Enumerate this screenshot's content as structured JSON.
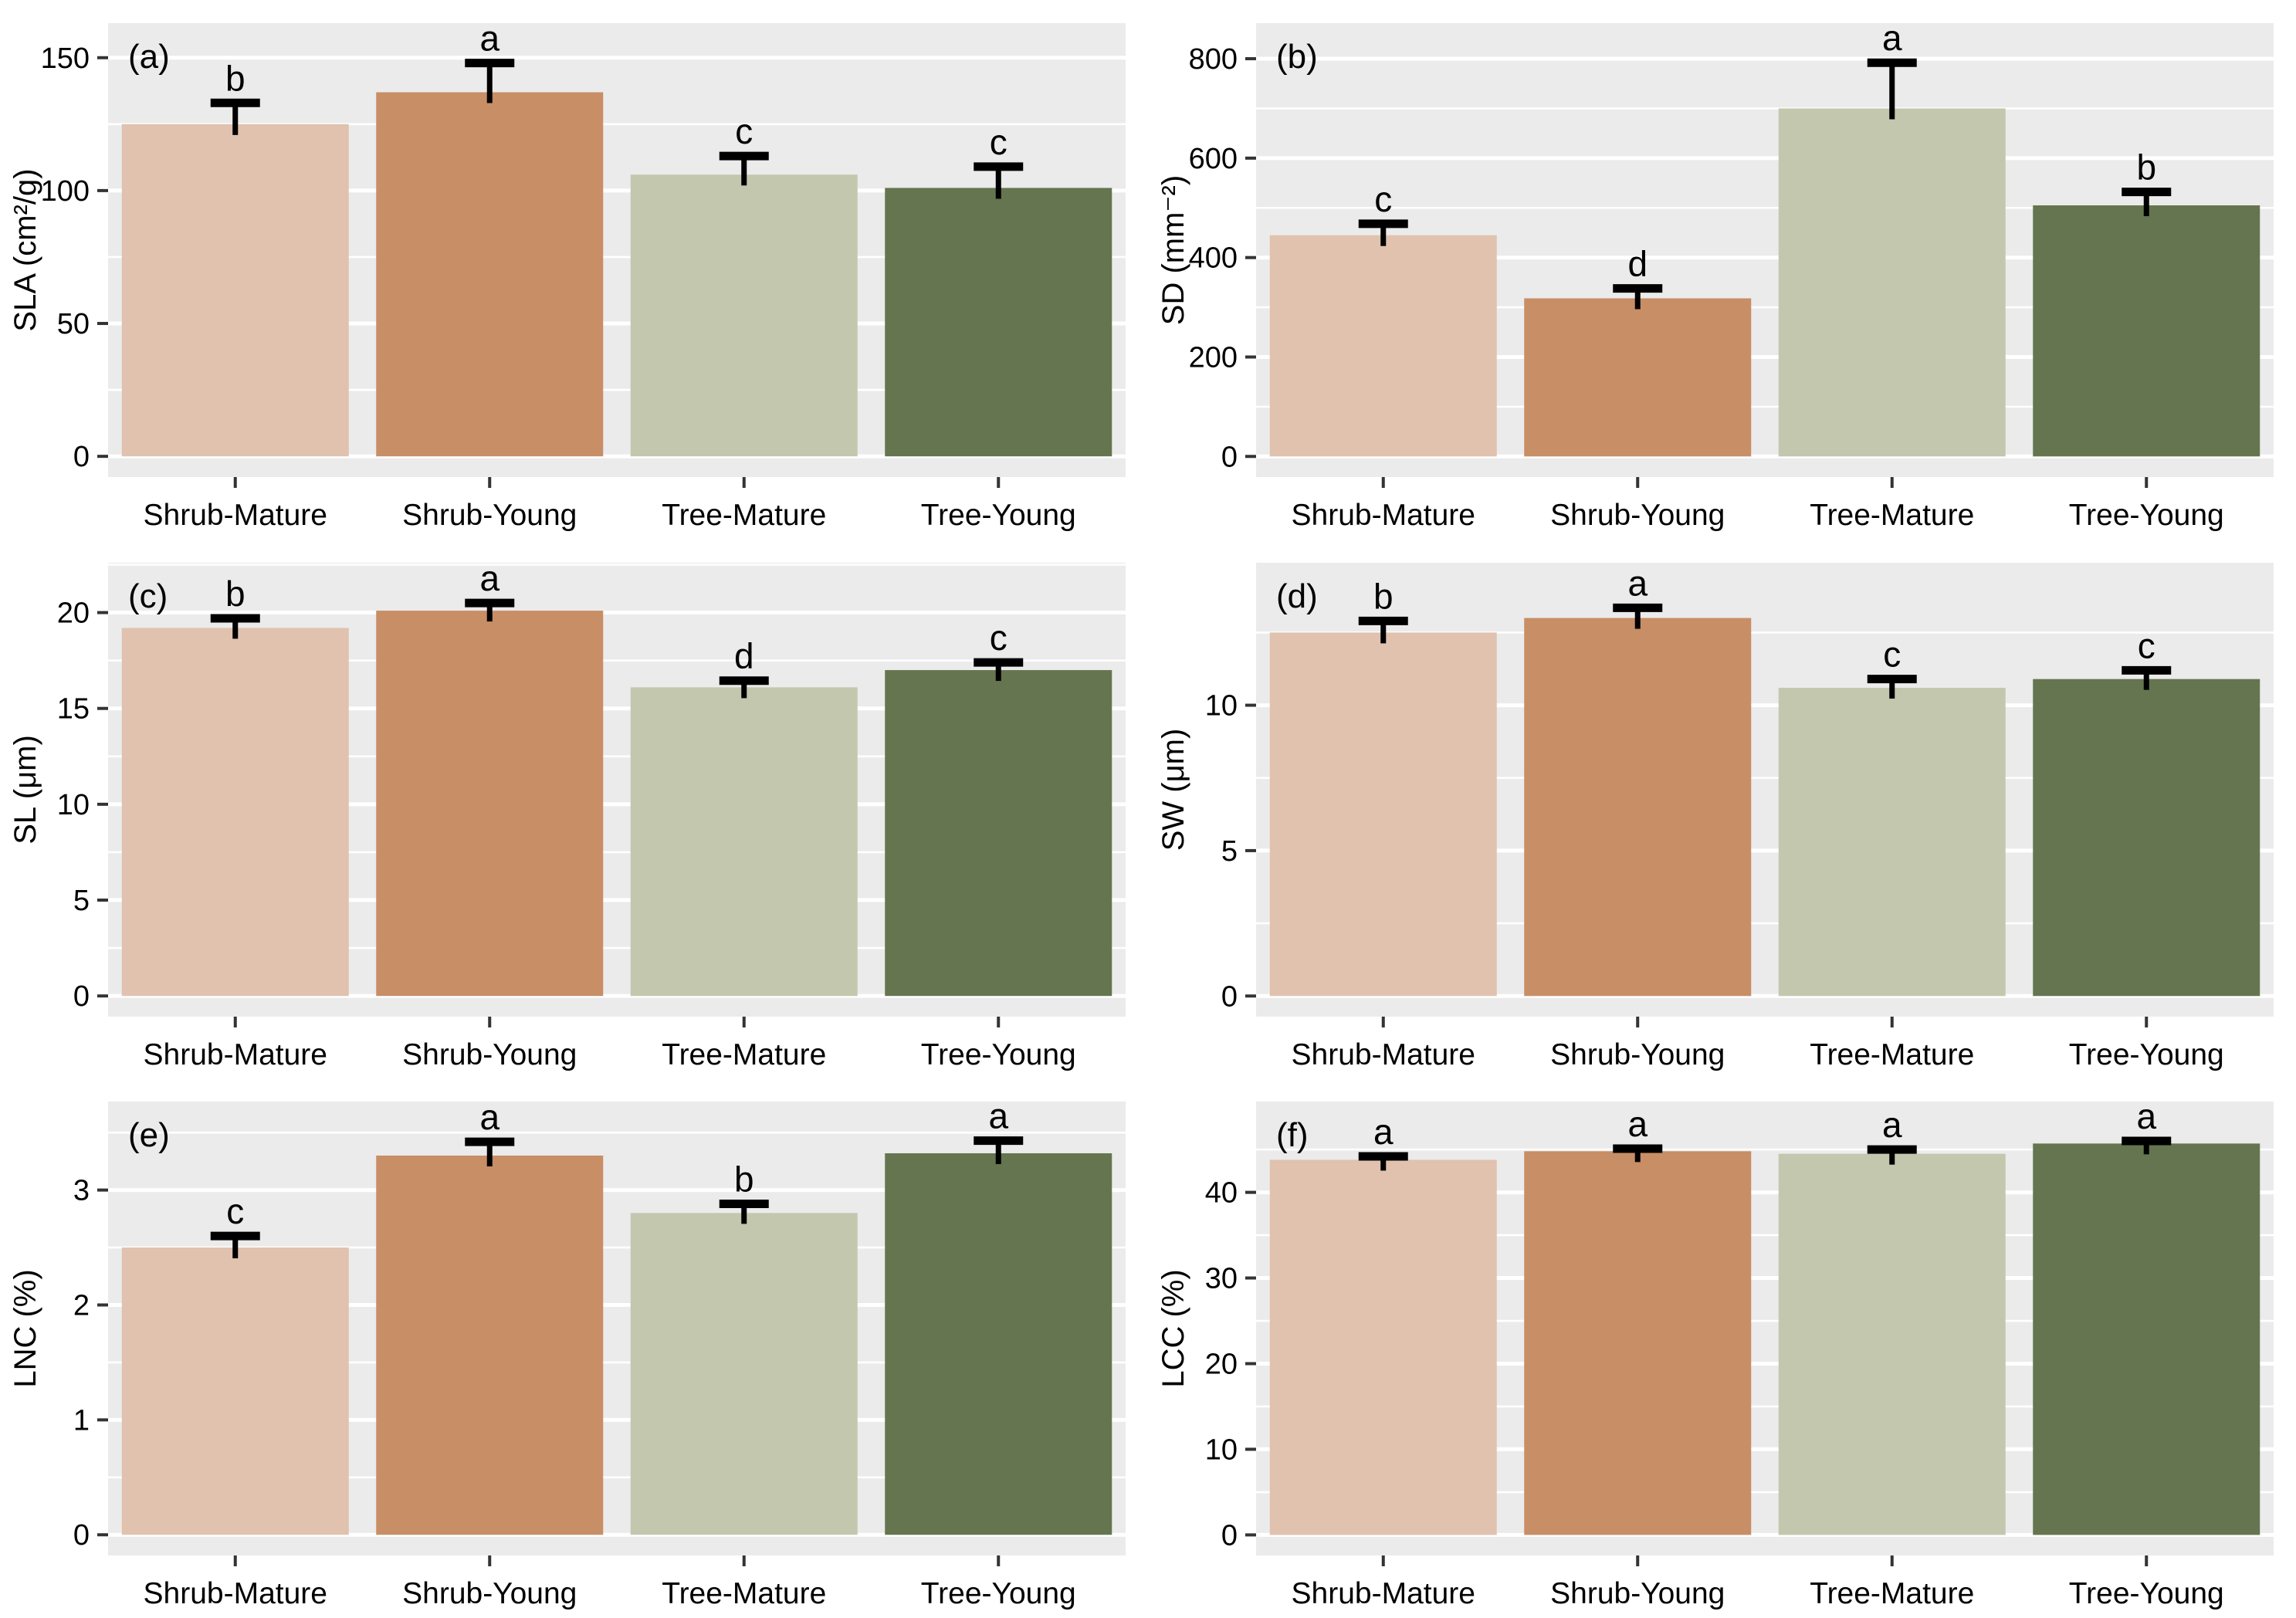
{
  "figure": {
    "background": "#ffffff",
    "panel_background": "#ebebeb",
    "gridline_color": "#ffffff",
    "text_color": "#000000",
    "error_bar_color": "#000000",
    "bar_colors": {
      "Shrub-Mature": "#e0c2ae",
      "Shrub-Young": "#c88e66",
      "Tree-Mature": "#c3c7ae",
      "Tree-Young": "#65754f"
    }
  },
  "categories": [
    "Shrub-Mature",
    "Shrub-Young",
    "Tree-Mature",
    "Tree-Young"
  ],
  "chart_data": [
    {
      "type": "bar",
      "panel_label": "(a)",
      "ylabel": "SLA (cm²/g)",
      "categories": [
        "Shrub-Mature",
        "Shrub-Young",
        "Tree-Mature",
        "Tree-Young"
      ],
      "values": [
        125,
        137,
        106,
        101
      ],
      "error_upper": [
        133,
        148,
        113,
        109
      ],
      "sig_letters": [
        "b",
        "a",
        "c",
        "c"
      ],
      "yticks": [
        0,
        50,
        100,
        150
      ],
      "ylim": [
        -7.8,
        163
      ],
      "grid": true,
      "legend": "none"
    },
    {
      "type": "bar",
      "panel_label": "(b)",
      "ylabel": "SD (mm⁻²)",
      "categories": [
        "Shrub-Mature",
        "Shrub-Young",
        "Tree-Mature",
        "Tree-Young"
      ],
      "values": [
        445,
        318,
        700,
        505
      ],
      "error_upper": [
        468,
        338,
        792,
        532
      ],
      "sig_letters": [
        "c",
        "d",
        "a",
        "b"
      ],
      "yticks": [
        0,
        200,
        400,
        600,
        800
      ],
      "ylim": [
        -41.5,
        871.5
      ],
      "grid": true,
      "legend": "none"
    },
    {
      "type": "bar",
      "panel_label": "(c)",
      "ylabel": "SL (μm)",
      "categories": [
        "Shrub-Mature",
        "Shrub-Young",
        "Tree-Mature",
        "Tree-Young"
      ],
      "values": [
        19.2,
        20.1,
        16.1,
        17.0
      ],
      "error_upper": [
        19.7,
        20.5,
        16.45,
        17.4
      ],
      "sig_letters": [
        "b",
        "a",
        "d",
        "c"
      ],
      "yticks": [
        0,
        5,
        10,
        15,
        20
      ],
      "ylim": [
        -1.08,
        22.6
      ],
      "grid": true,
      "legend": "none"
    },
    {
      "type": "bar",
      "panel_label": "(d)",
      "ylabel": "SW (μm)",
      "categories": [
        "Shrub-Mature",
        "Shrub-Young",
        "Tree-Mature",
        "Tree-Young"
      ],
      "values": [
        12.5,
        13.0,
        10.6,
        10.9
      ],
      "error_upper": [
        12.9,
        13.35,
        10.9,
        11.2
      ],
      "sig_letters": [
        "b",
        "a",
        "c",
        "c"
      ],
      "yticks": [
        0,
        5,
        10
      ],
      "ylim": [
        -0.71,
        14.9
      ],
      "grid": true,
      "legend": "none"
    },
    {
      "type": "bar",
      "panel_label": "(e)",
      "ylabel": "LNC (%)",
      "categories": [
        "Shrub-Mature",
        "Shrub-Young",
        "Tree-Mature",
        "Tree-Young"
      ],
      "values": [
        2.5,
        3.3,
        2.8,
        3.32
      ],
      "error_upper": [
        2.6,
        3.42,
        2.88,
        3.43
      ],
      "sig_letters": [
        "c",
        "a",
        "b",
        "a"
      ],
      "yticks": [
        0,
        1,
        2,
        3
      ],
      "ylim": [
        -0.18,
        3.77
      ],
      "grid": true,
      "legend": "none"
    },
    {
      "type": "bar",
      "panel_label": "(f)",
      "ylabel": "LCC (%)",
      "categories": [
        "Shrub-Mature",
        "Shrub-Young",
        "Tree-Mature",
        "Tree-Young"
      ],
      "values": [
        43.8,
        44.8,
        44.5,
        45.7
      ],
      "error_upper": [
        44.2,
        45.1,
        45.0,
        46.0
      ],
      "sig_letters": [
        "a",
        "a",
        "a",
        "a"
      ],
      "yticks": [
        0,
        10,
        20,
        30,
        40
      ],
      "ylim": [
        -2.4,
        50.6
      ],
      "grid": true,
      "legend": "none"
    }
  ]
}
